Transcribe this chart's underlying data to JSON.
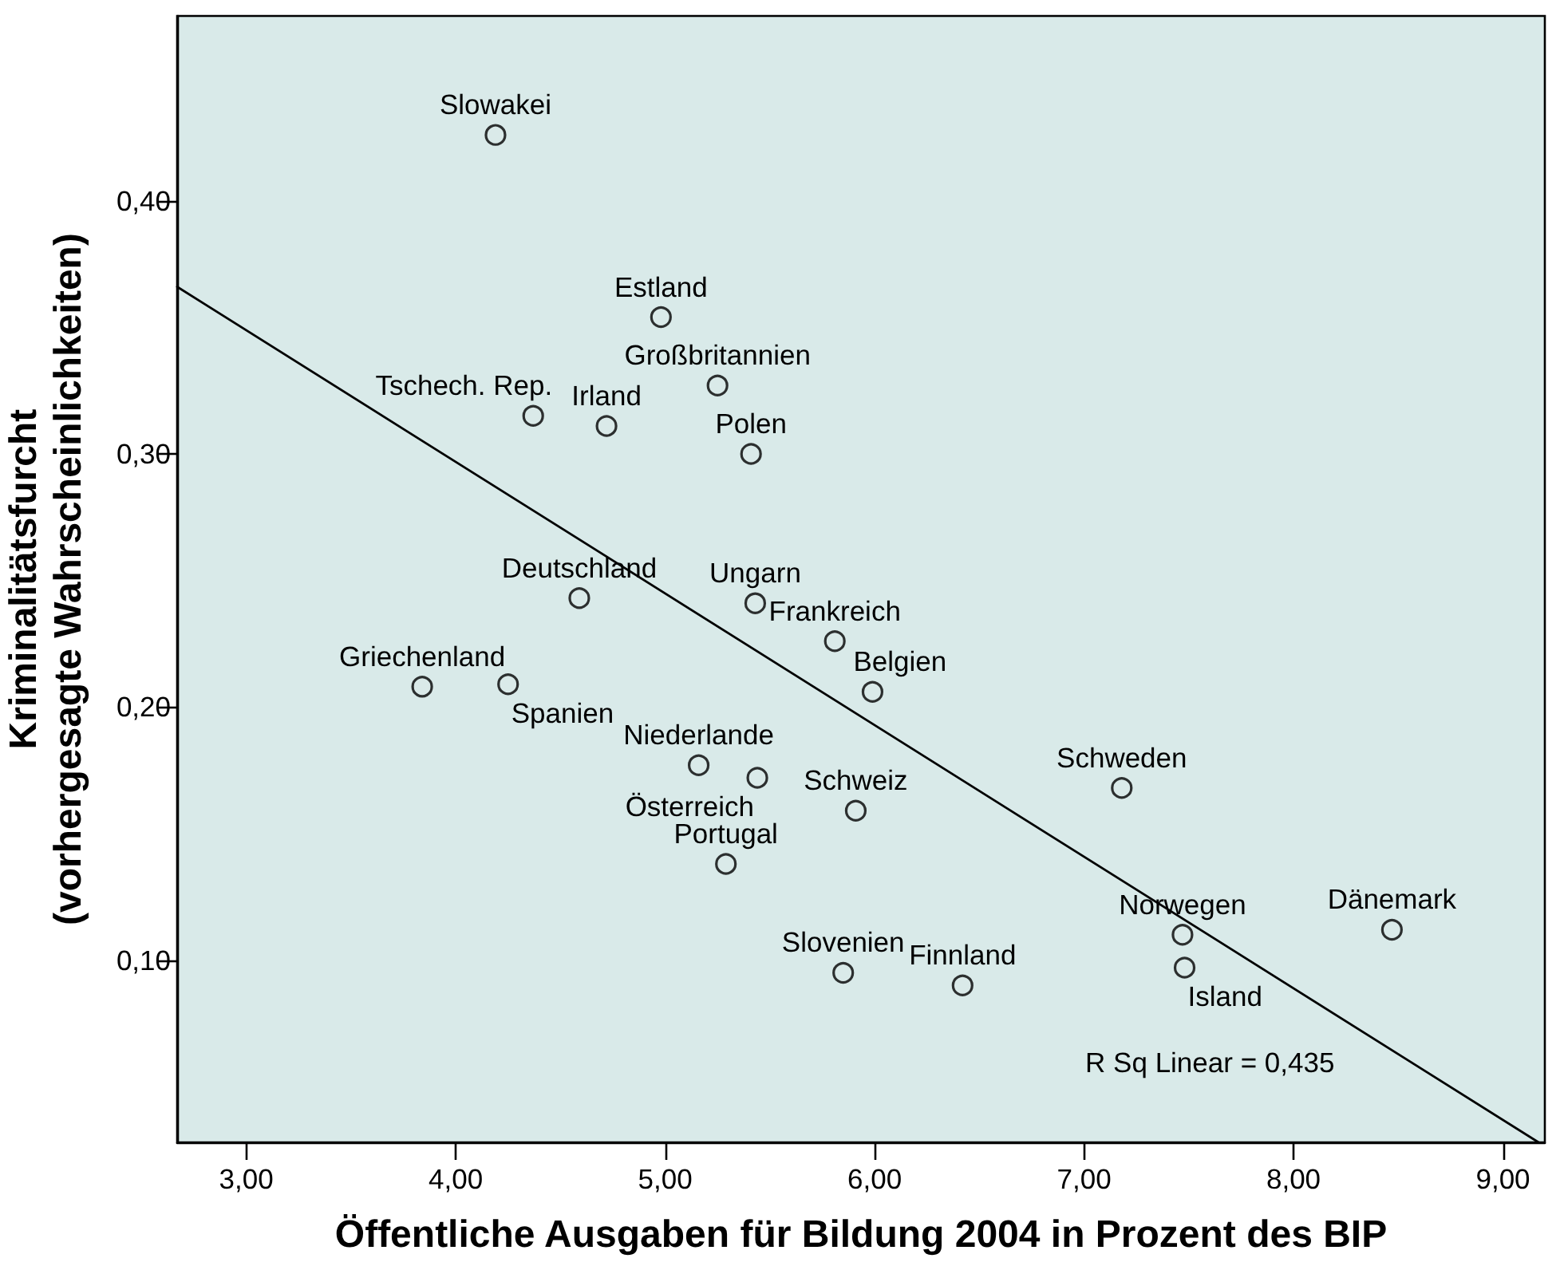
{
  "chart_data": {
    "type": "scatter",
    "xlabel": "Öffentliche Ausgaben für Bildung 2004 in Prozent des BIP",
    "ylabel": "Kriminalitätsfurcht\n(vorhergesagte Wahrscheinlichkeiten)",
    "xlim": [
      2.67,
      9.2
    ],
    "xticks": [
      {
        "value": 3,
        "label": "3,00"
      },
      {
        "value": 4,
        "label": "4,00"
      },
      {
        "value": 5,
        "label": "5,00"
      },
      {
        "value": 6,
        "label": "6,00"
      },
      {
        "value": 7,
        "label": "7,00"
      },
      {
        "value": 8,
        "label": "8,00"
      },
      {
        "value": 9,
        "label": "9,00"
      }
    ],
    "ylim": [
      0.028,
      0.473
    ],
    "yticks": [
      {
        "value": 0.1,
        "label": "0,10"
      },
      {
        "value": 0.2,
        "label": "0,20"
      },
      {
        "value": 0.3,
        "label": "0,30"
      },
      {
        "value": 0.4,
        "label": "0,40"
      }
    ],
    "marker": "circle",
    "series": [
      {
        "color": "#000000",
        "x": [
          4.19,
          4.98,
          5.25,
          4.37,
          4.72,
          5.41,
          4.59,
          5.43,
          5.81,
          5.99,
          3.84,
          4.25,
          5.16,
          5.44,
          5.91,
          5.29,
          5.85,
          6.42,
          7.18,
          7.47,
          7.48,
          8.47
        ],
        "values": [
          0.426,
          0.354,
          0.327,
          0.315,
          0.311,
          0.3,
          0.243,
          0.241,
          0.226,
          0.206,
          0.208,
          0.209,
          0.177,
          0.172,
          0.159,
          0.138,
          0.095,
          0.09,
          0.168,
          0.11,
          0.097,
          0.112
        ]
      },
      {
        "type": "line",
        "color": "#000000",
        "marker": "none",
        "x": [
          2.67,
          9.17
        ],
        "values": [
          0.366,
          0.028
        ]
      }
    ],
    "annotations": [
      "R Sq Linear = 0,435",
      {
        "text": "Slowakei",
        "x": 4.19,
        "y": 0.426
      },
      {
        "text": "Estland",
        "x": 4.98,
        "y": 0.354
      },
      {
        "text": "Großbritannien",
        "x": 5.25,
        "y": 0.327
      },
      {
        "text": "Irland",
        "x": 4.72,
        "y": 0.311
      },
      {
        "text": "Tschech. Rep.",
        "x": 4.37,
        "y": 0.315
      },
      {
        "text": "Polen",
        "x": 5.41,
        "y": 0.3
      },
      {
        "text": "Deutschland",
        "x": 4.59,
        "y": 0.243
      },
      {
        "text": "Ungarn",
        "x": 5.43,
        "y": 0.241
      },
      {
        "text": "Frankreich",
        "x": 5.81,
        "y": 0.226
      },
      {
        "text": "Belgien",
        "x": 5.99,
        "y": 0.206
      },
      {
        "text": "Griechenland",
        "x": 3.84,
        "y": 0.208
      },
      {
        "text": "Spanien",
        "x": 4.25,
        "y": 0.209
      },
      {
        "text": "Niederlande",
        "x": 5.16,
        "y": 0.177
      },
      {
        "text": "Österreich",
        "x": 5.44,
        "y": 0.172
      },
      {
        "text": "Schweiz",
        "x": 5.91,
        "y": 0.159
      },
      {
        "text": "Portugal",
        "x": 5.29,
        "y": 0.138
      },
      {
        "text": "Slovenien",
        "x": 5.85,
        "y": 0.095
      },
      {
        "text": "Finnland",
        "x": 6.42,
        "y": 0.09
      },
      {
        "text": "Schweden",
        "x": 7.18,
        "y": 0.168
      },
      {
        "text": "Norwegen",
        "x": 7.47,
        "y": 0.11
      },
      {
        "text": "Island",
        "x": 7.48,
        "y": 0.097
      },
      {
        "text": "Dänemark",
        "x": 8.47,
        "y": 0.112
      }
    ]
  }
}
